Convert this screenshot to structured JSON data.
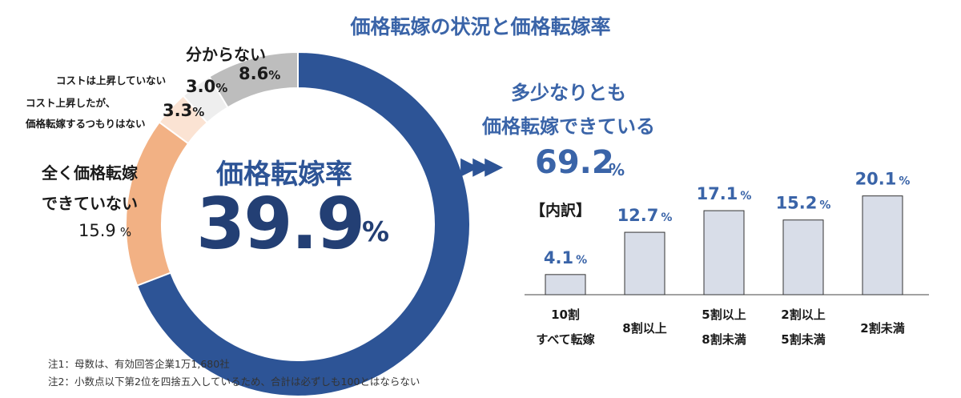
{
  "chart_data": [
    {
      "type": "pie",
      "title": "価格転嫁率",
      "center_value": "39.9",
      "center_unit": "%",
      "categories": [
        "多少なりとも価格転嫁できている",
        "全く価格転嫁できていない",
        "コスト上昇したが、価格転嫁するつもりはない",
        "コストは上昇していない",
        "分からない"
      ],
      "values": [
        69.2,
        15.9,
        3.3,
        3.0,
        8.6
      ],
      "colors": [
        "#2d5496",
        "#f2b184",
        "#fbe3d3",
        "#eeeeee",
        "#bdbdbd"
      ]
    },
    {
      "type": "bar",
      "title": "【内訳】",
      "categories": [
        "10割 すべて転嫁",
        "8割以上",
        "5割以上 8割未満",
        "2割以上 5割未満",
        "2割未満"
      ],
      "values": [
        4.1,
        12.7,
        17.1,
        15.2,
        20.1
      ],
      "ylim": [
        0,
        22
      ],
      "bar_color": "#d8dde8",
      "grid": false
    }
  ],
  "labels": {
    "title": "価格転嫁の状況と価格転嫁率",
    "center_label": "価格転嫁率",
    "center_value": "39.9",
    "center_unit": "%",
    "wakaranai": "分からない",
    "wakaranai_pct": "8.6",
    "cost_no_rise": "コストは上昇していない",
    "cost_no_rise_pct": "3.0",
    "no_intent_1": "コスト上昇したが、",
    "no_intent_2": "価格転嫁するつもりはない",
    "no_intent_pct": "3.3",
    "none_1": "全く価格転嫁",
    "none_2": "できていない",
    "none_pct": "15.9",
    "pct_unit": "%",
    "arrows": "▶▶▶",
    "partial_1": "多少なりとも",
    "partial_2": "価格転嫁できている",
    "partial_value": "69.2",
    "breakdown": "【内訳】",
    "bar_labels": [
      [
        "10割",
        "すべて転嫁"
      ],
      [
        "8割以上"
      ],
      [
        "5割以上",
        "8割未満"
      ],
      [
        "2割以上",
        "5割未満"
      ],
      [
        "2割未満"
      ]
    ]
  },
  "footnotes": {
    "note1": "注1：母数は、有効回答企業1万1,680社",
    "note2": "注2：小数点以下第2位を四捨五入しているため、合計は必ずしも100とはならない"
  }
}
